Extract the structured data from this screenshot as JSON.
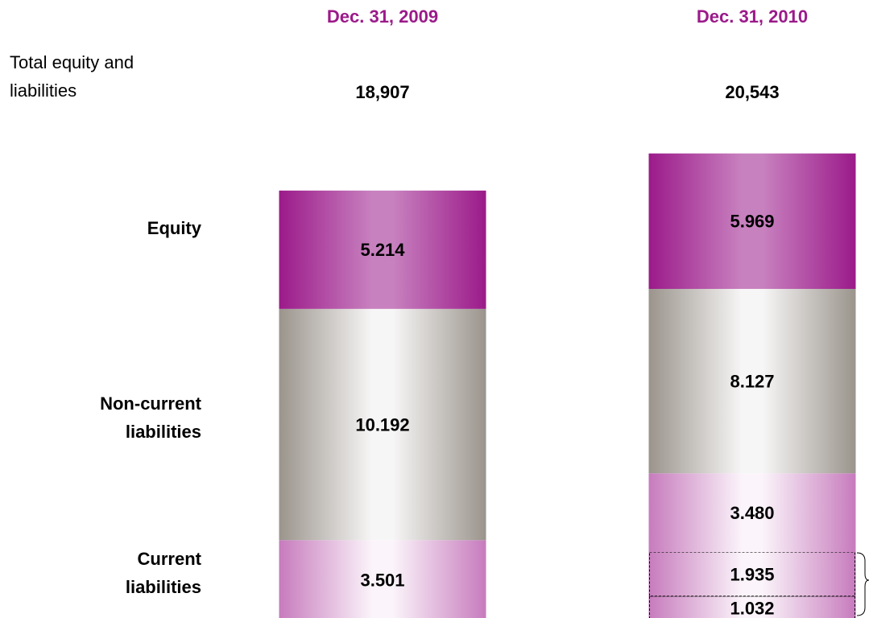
{
  "chart_data": {
    "type": "stacked_bar",
    "categories": [
      "Dec. 31, 2009",
      "Dec. 31, 2010"
    ],
    "totals": {
      "label": "Total equity and liabilities",
      "values": [
        18907,
        20543
      ],
      "value_labels": [
        "18,907",
        "20,543"
      ]
    },
    "series": [
      {
        "name": "Equity",
        "color": "#9b1a8a",
        "values": [
          5214,
          5969
        ],
        "value_labels": [
          "5.214",
          "5.969"
        ]
      },
      {
        "name": "Non-current liabilities",
        "color": "#9a948c",
        "values": [
          10192,
          8127
        ],
        "value_labels": [
          "10.192",
          "8.127"
        ]
      },
      {
        "name": "Current liabilities",
        "color": "#c77bbd",
        "values": [
          3501,
          3480
        ],
        "value_labels": [
          "3.501",
          "3.480"
        ]
      },
      {
        "color": "#c77bbd",
        "values": [
          null,
          1935
        ],
        "value_labels": [
          null,
          "1.935"
        ]
      },
      {
        "color": "#c77bbd",
        "values": [
          null,
          1032
        ],
        "value_labels": [
          null,
          "1.032"
        ]
      }
    ]
  }
}
